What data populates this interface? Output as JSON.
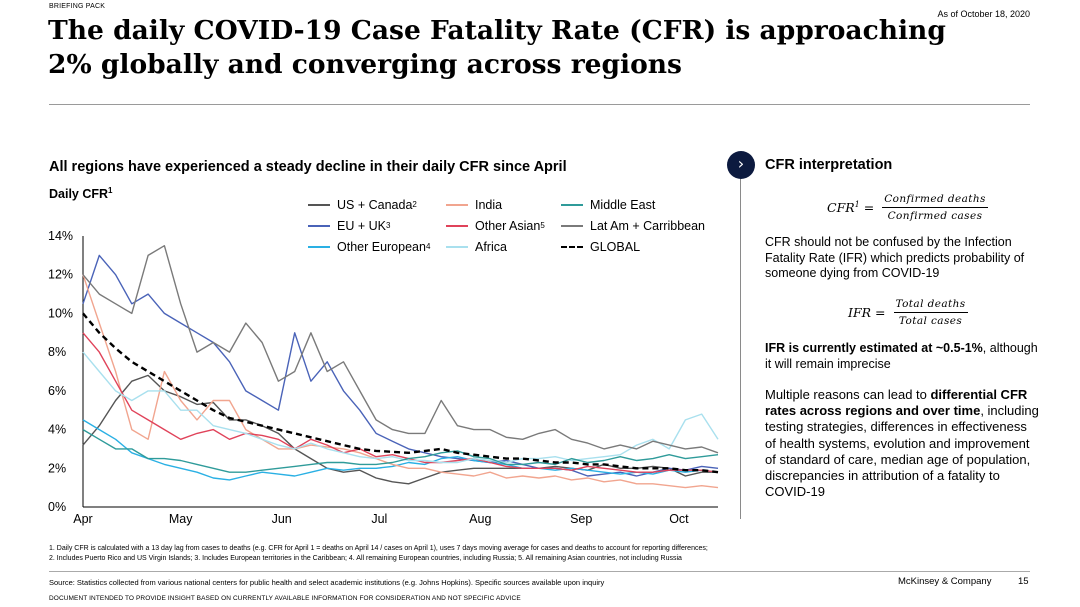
{
  "header": {
    "kicker": "BRIEFING PACK",
    "as_of": "As of October 18, 2020",
    "title": "The daily COVID-19 Case Fatality Rate (CFR) is approaching 2% globally and converging across regions"
  },
  "chart_section": {
    "subtitle": "All regions have experienced a steady decline in their daily CFR since April",
    "y_title": "Daily CFR",
    "y_title_sup": "1"
  },
  "colors": {
    "us_canada": "#555555",
    "eu_uk": "#4a63b8",
    "other_european": "#2ab0e4",
    "india": "#f1a58f",
    "other_asian": "#e0435a",
    "africa": "#a9e0ee",
    "middle_east": "#2f9b9a",
    "latam": "#7a7a7a",
    "global": "#000000"
  },
  "chart_data": {
    "type": "line",
    "title": "All regions have experienced a steady decline in their daily CFR since April",
    "ylabel": "Daily CFR",
    "xlabel": "",
    "ylim": [
      0,
      14
    ],
    "yticks": [
      0,
      2,
      4,
      6,
      8,
      10,
      12,
      14
    ],
    "ytick_labels": [
      "0%",
      "2%",
      "4%",
      "6%",
      "8%",
      "10%",
      "12%",
      "14%"
    ],
    "xlim": [
      0,
      195
    ],
    "xticks": [
      0,
      30,
      61,
      91,
      122,
      153,
      183
    ],
    "xtick_labels": [
      "Apr",
      "May",
      "Jun",
      "Jul",
      "Aug",
      "Sep",
      "Oct"
    ],
    "x": [
      0,
      5,
      10,
      15,
      20,
      25,
      30,
      35,
      40,
      45,
      50,
      55,
      60,
      65,
      70,
      75,
      80,
      85,
      90,
      95,
      100,
      105,
      110,
      115,
      120,
      125,
      130,
      135,
      140,
      145,
      150,
      155,
      160,
      165,
      170,
      175,
      180,
      185,
      190,
      195
    ],
    "series": [
      {
        "name": "US + Canada",
        "sup": "2",
        "key": "us_canada",
        "dash": "solid",
        "values": [
          3.2,
          4.2,
          5.5,
          6.5,
          6.8,
          6.0,
          5.7,
          5.3,
          5.4,
          4.5,
          4.5,
          4.2,
          3.8,
          3.0,
          2.5,
          2.0,
          1.8,
          1.9,
          1.5,
          1.3,
          1.2,
          1.5,
          1.8,
          1.9,
          2.0,
          2.0,
          2.0,
          2.0,
          2.0,
          2.1,
          2.0,
          1.9,
          2.2,
          2.0,
          2.0,
          2.1,
          2.0,
          1.6,
          1.8,
          1.8
        ]
      },
      {
        "name": "EU + UK",
        "sup": "3",
        "key": "eu_uk",
        "dash": "solid",
        "values": [
          10.5,
          13.0,
          12.0,
          10.5,
          11.0,
          10.0,
          9.5,
          9.0,
          8.5,
          7.5,
          6.0,
          5.5,
          5.0,
          9.0,
          6.5,
          7.5,
          6.0,
          5.0,
          3.8,
          3.4,
          3.0,
          2.8,
          2.6,
          2.5,
          2.4,
          2.3,
          2.4,
          2.2,
          2.0,
          2.0,
          1.9,
          1.6,
          1.7,
          1.8,
          1.6,
          1.8,
          2.0,
          1.9,
          2.1,
          2.0
        ]
      },
      {
        "name": "Other European",
        "sup": "4",
        "key": "other_european",
        "dash": "solid",
        "values": [
          4.5,
          4.0,
          3.5,
          2.8,
          2.5,
          2.2,
          2.0,
          1.8,
          1.5,
          1.4,
          1.6,
          1.8,
          1.7,
          1.6,
          1.8,
          2.0,
          1.9,
          2.0,
          2.0,
          2.1,
          2.3,
          2.2,
          2.5,
          2.6,
          2.4,
          2.3,
          2.2,
          2.0,
          2.0,
          1.9,
          2.0,
          1.9,
          1.8,
          1.7,
          1.8,
          1.7,
          1.9,
          1.8,
          1.9,
          1.8
        ]
      },
      {
        "name": "India",
        "sup": "",
        "key": "india",
        "dash": "solid",
        "values": [
          12.0,
          9.5,
          7.0,
          4.0,
          3.5,
          7.0,
          5.5,
          4.5,
          5.5,
          5.5,
          4.0,
          3.5,
          3.0,
          3.0,
          3.2,
          3.1,
          3.0,
          2.8,
          2.5,
          2.2,
          2.0,
          2.0,
          1.8,
          1.7,
          1.6,
          1.8,
          1.5,
          1.6,
          1.5,
          1.6,
          1.4,
          1.5,
          1.3,
          1.4,
          1.2,
          1.2,
          1.1,
          1.0,
          1.1,
          1.0
        ]
      },
      {
        "name": "Other Asian",
        "sup": "5",
        "key": "other_asian",
        "dash": "solid",
        "values": [
          9.0,
          8.0,
          6.5,
          5.0,
          4.5,
          4.0,
          3.5,
          3.8,
          4.0,
          3.5,
          3.8,
          3.7,
          3.5,
          3.0,
          3.5,
          3.2,
          2.8,
          3.0,
          2.6,
          2.7,
          2.5,
          2.3,
          2.3,
          2.4,
          2.5,
          2.3,
          2.1,
          2.0,
          2.0,
          2.0,
          1.9,
          2.1,
          2.0,
          1.9,
          1.8,
          1.8,
          1.9,
          1.9,
          1.9,
          1.8
        ]
      },
      {
        "name": "Africa",
        "sup": "",
        "key": "africa",
        "dash": "solid",
        "values": [
          8.0,
          7.0,
          6.0,
          5.5,
          6.0,
          6.0,
          5.0,
          5.0,
          4.2,
          4.0,
          3.8,
          3.5,
          3.2,
          3.0,
          3.3,
          3.0,
          2.8,
          2.6,
          2.5,
          2.6,
          2.4,
          2.4,
          2.3,
          2.3,
          2.5,
          2.4,
          2.3,
          2.5,
          2.5,
          2.6,
          2.4,
          2.5,
          2.6,
          2.7,
          3.2,
          3.5,
          3.0,
          4.5,
          4.8,
          3.5
        ]
      },
      {
        "name": "Middle East",
        "sup": "",
        "key": "middle_east",
        "dash": "solid",
        "values": [
          4.0,
          3.5,
          3.0,
          3.0,
          2.5,
          2.5,
          2.4,
          2.2,
          2.0,
          1.8,
          1.8,
          1.9,
          2.0,
          2.1,
          2.2,
          2.3,
          2.3,
          2.2,
          2.2,
          2.3,
          2.5,
          2.6,
          2.8,
          2.9,
          2.6,
          2.5,
          2.2,
          2.2,
          2.3,
          2.2,
          2.5,
          2.3,
          2.4,
          2.6,
          2.4,
          2.5,
          2.7,
          2.5,
          2.6,
          2.7
        ]
      },
      {
        "name": "Lat Am + Carribbean",
        "sup": "",
        "key": "latam",
        "dash": "solid",
        "values": [
          12.0,
          11.0,
          10.5,
          10.0,
          13.0,
          13.5,
          10.5,
          8.0,
          8.5,
          8.0,
          9.5,
          8.5,
          6.5,
          7.0,
          9.0,
          7.0,
          7.5,
          6.0,
          4.5,
          4.0,
          3.8,
          3.8,
          5.5,
          4.2,
          4.0,
          4.0,
          3.6,
          3.5,
          3.8,
          4.0,
          3.5,
          3.3,
          3.0,
          3.2,
          3.0,
          3.4,
          3.2,
          3.0,
          3.1,
          2.8
        ]
      },
      {
        "name": "GLOBAL",
        "sup": "",
        "key": "global",
        "dash": "dashed",
        "values": [
          10.0,
          9.0,
          8.2,
          7.5,
          7.0,
          6.5,
          6.0,
          5.5,
          5.0,
          4.6,
          4.4,
          4.2,
          4.0,
          3.8,
          3.6,
          3.4,
          3.2,
          3.0,
          2.9,
          2.85,
          2.8,
          2.9,
          3.0,
          2.8,
          2.7,
          2.6,
          2.5,
          2.5,
          2.4,
          2.3,
          2.3,
          2.2,
          2.2,
          2.1,
          2.0,
          2.0,
          2.0,
          1.9,
          1.9,
          1.8
        ]
      }
    ]
  },
  "panel": {
    "title": "CFR interpretation",
    "cfr_lhs": "CFR",
    "cfr_sup": "1",
    "cfr_eq": "=",
    "cfr_num": "Confirmed deaths",
    "cfr_den": "Confirmed cases",
    "p1": "CFR should not be confused by the Infection Fatality Rate (IFR) which predicts probability of someone dying from COVID-19",
    "ifr_lhs": "IFR",
    "ifr_eq": "=",
    "ifr_num": "Total deaths",
    "ifr_den": "Total cases",
    "p2_bold": "IFR is currently estimated at ~0.5-1%",
    "p2_rest": ", although it will remain imprecise",
    "p3_a": "Multiple reasons can lead to ",
    "p3_bold": "differential CFR rates across regions and over time",
    "p3_b": ", including testing strategies, differences in effectiveness of health systems, evolution and improvement of standard of care, median age of population, discrepancies in attribution of a fatality to COVID-19"
  },
  "footer": {
    "note1": "1.  Daily CFR is calculated with a 13 day lag from cases to deaths (e.g. CFR for April 1 = deaths on April 14 / cases on April 1), uses 7 days moving average for cases and deaths to account for reporting differences;",
    "note2": "2.  Includes Puerto Rico and US Virgin Islands;     3.  Includes European territories in the Caribbean;    4.  All remaining European countries, including Russia;    5.  All remaining Asian countries, not including Russia",
    "source": "Source: Statistics collected from various national centers for public health and select academic institutions (e.g. Johns Hopkins). Specific sources available upon inquiry",
    "company": "McKinsey & Company",
    "page": "15",
    "disclaimer": "DOCUMENT INTENDED TO PROVIDE INSIGHT BASED ON CURRENTLY AVAILABLE INFORMATION FOR CONSIDERATION AND NOT SPECIFIC ADVICE"
  }
}
